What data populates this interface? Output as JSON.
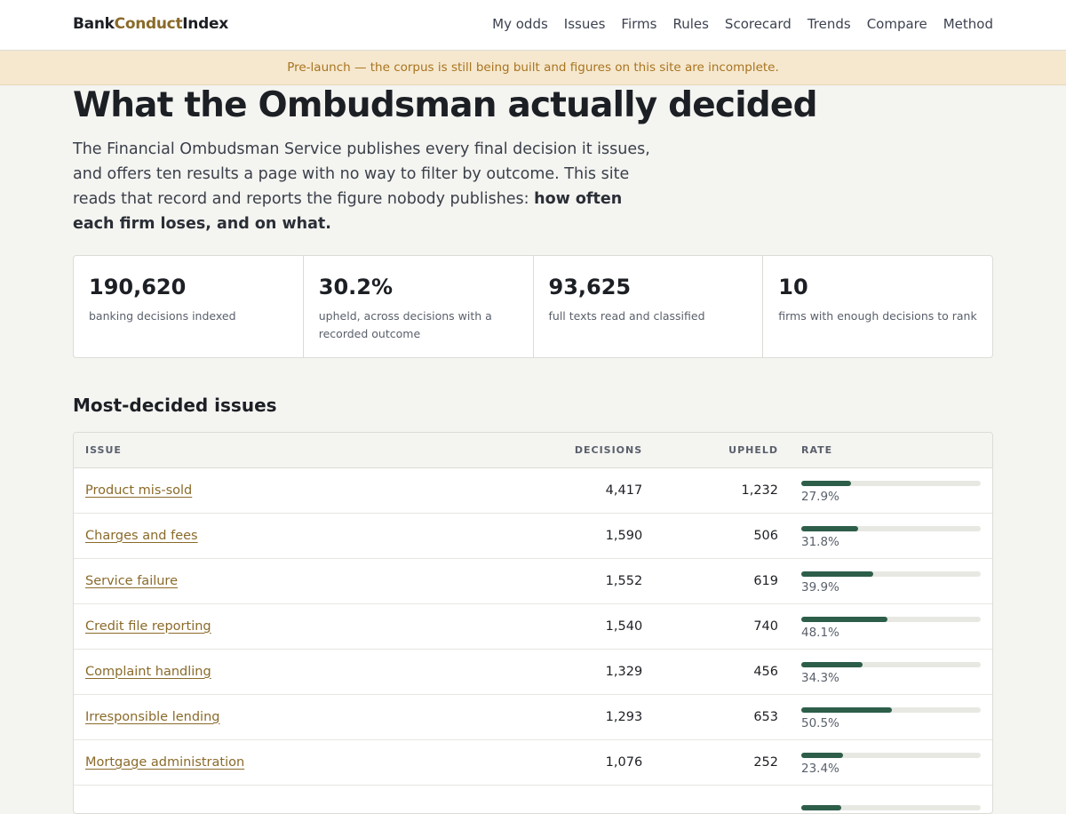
{
  "header": {
    "brand_part1": "Bank",
    "brand_part2": "Conduct",
    "brand_part3": "Index",
    "nav": [
      "My odds",
      "Issues",
      "Firms",
      "Rules",
      "Scorecard",
      "Trends",
      "Compare",
      "Method"
    ]
  },
  "banner": {
    "text": "Pre-launch — the corpus is still being built and figures on this site are incomplete."
  },
  "hero": {
    "title": "What the Ombudsman actually decided",
    "intro": "The Financial Ombudsman Service publishes every final decision it issues, and offers ten results a page with no way to filter by outcome. This site reads that record and reports the figure nobody publishes: ",
    "intro_bold": "how often each firm loses, and on what."
  },
  "stats": [
    {
      "value": "190,620",
      "label": "banking decisions indexed"
    },
    {
      "value": "30.2%",
      "label": "upheld, across decisions with a recorded outcome"
    },
    {
      "value": "93,625",
      "label": "full texts read and classified"
    },
    {
      "value": "10",
      "label": "firms with enough decisions to rank"
    }
  ],
  "issues_table": {
    "title": "Most-decided issues",
    "columns": {
      "issue": "Issue",
      "decisions": "Decisions",
      "upheld": "Upheld",
      "rate": "Rate"
    },
    "rows": [
      {
        "issue": "Product mis-sold",
        "decisions": "4,417",
        "upheld": "1,232",
        "rate": "27.9%",
        "rate_value": 27.9
      },
      {
        "issue": "Charges and fees",
        "decisions": "1,590",
        "upheld": "506",
        "rate": "31.8%",
        "rate_value": 31.8
      },
      {
        "issue": "Service failure",
        "decisions": "1,552",
        "upheld": "619",
        "rate": "39.9%",
        "rate_value": 39.9
      },
      {
        "issue": "Credit file reporting",
        "decisions": "1,540",
        "upheld": "740",
        "rate": "48.1%",
        "rate_value": 48.1
      },
      {
        "issue": "Complaint handling",
        "decisions": "1,329",
        "upheld": "456",
        "rate": "34.3%",
        "rate_value": 34.3
      },
      {
        "issue": "Irresponsible lending",
        "decisions": "1,293",
        "upheld": "653",
        "rate": "50.5%",
        "rate_value": 50.5
      },
      {
        "issue": "Mortgage administration",
        "decisions": "1,076",
        "upheld": "252",
        "rate": "23.4%",
        "rate_value": 23.4
      },
      {
        "issue": "",
        "decisions": "",
        "upheld": "",
        "rate": "",
        "rate_value": 22.5
      }
    ]
  },
  "colors": {
    "accent": "#8a6a2a",
    "bar": "#2d5e4a",
    "banner_bg": "#f6e8cf",
    "banner_text": "#a8741f"
  }
}
